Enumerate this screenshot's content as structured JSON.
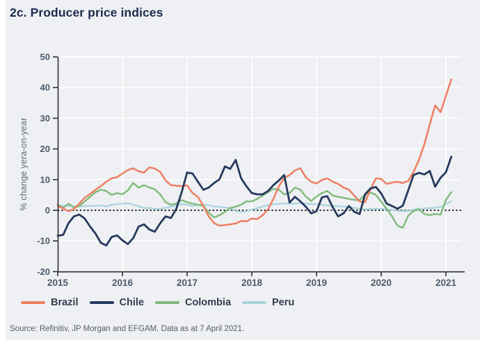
{
  "title": "2c. Producer price indices",
  "source": "Source: Refinitiv, JP Morgan and EFGAM. Data as at 7 April 2021.",
  "colors": {
    "panel_bg": "#eef0f3",
    "grid": "#ffffff",
    "axis": "#2f2f2f",
    "tick_label": "#4d5b6b",
    "axis_title": "#5d6b7a",
    "zero_line": "#1f1f1f",
    "title_text": "#1e2b4f",
    "legend_text": "#333d4d",
    "source_text": "#565d64"
  },
  "chart_data": {
    "type": "line",
    "title": "2c. Producer price indices",
    "ylabel": "% change yera-on-year",
    "ylim": [
      -20,
      50
    ],
    "yticks": [
      50,
      40,
      30,
      20,
      10,
      0,
      -10,
      -20
    ],
    "xtick_labels": [
      "2015",
      "2016",
      "2017",
      "2018",
      "2019",
      "2020",
      "2021"
    ],
    "x_unit": "monthly",
    "x_range": "Jan 2015 - Feb 2021",
    "grid": "on",
    "zero_line": "dotted",
    "legend_position": "bottom-left",
    "series": [
      {
        "name": "Brazil",
        "color": "#ee7e62",
        "values": [
          1.4,
          0.6,
          -0.3,
          0.4,
          2.2,
          4.1,
          5.3,
          6.7,
          7.9,
          9.3,
          10.4,
          10.8,
          12.0,
          13.1,
          13.7,
          12.7,
          12.3,
          14.0,
          13.6,
          12.5,
          9.7,
          8.2,
          8.0,
          7.9,
          8.1,
          5.6,
          4.4,
          1.4,
          -2.0,
          -4.2,
          -5.0,
          -4.8,
          -4.6,
          -4.3,
          -3.5,
          -3.6,
          -2.7,
          -2.9,
          -1.6,
          0.3,
          3.7,
          7.8,
          10.5,
          11.5,
          13.0,
          13.7,
          10.8,
          9.3,
          8.7,
          9.9,
          10.4,
          9.3,
          8.6,
          7.4,
          6.7,
          4.8,
          2.9,
          2.6,
          6.8,
          10.4,
          10.2,
          8.6,
          9.0,
          9.3,
          8.9,
          9.6,
          12.5,
          16.5,
          21.5,
          28.0,
          34.2,
          32.0,
          37.3,
          42.7
        ]
      },
      {
        "name": "Chile",
        "color": "#25395c",
        "values": [
          -8.3,
          -8.0,
          -4.2,
          -2.0,
          -1.4,
          -2.7,
          -5.3,
          -7.6,
          -10.6,
          -11.5,
          -8.7,
          -8.2,
          -9.8,
          -11.0,
          -9.1,
          -5.3,
          -4.6,
          -6.3,
          -7.0,
          -4.2,
          -2.0,
          -2.5,
          0.5,
          6.0,
          12.3,
          12.0,
          9.3,
          6.7,
          7.4,
          8.9,
          10.1,
          14.3,
          13.5,
          16.4,
          10.5,
          7.8,
          5.6,
          5.2,
          5.2,
          6.3,
          8.2,
          9.7,
          11.5,
          2.5,
          4.4,
          2.9,
          1.2,
          -1.0,
          -0.3,
          4.2,
          4.6,
          1.0,
          -2.0,
          -1.0,
          1.4,
          -0.5,
          -1.2,
          5.2,
          7.1,
          7.6,
          5.5,
          2.2,
          1.4,
          0.5,
          1.5,
          6.5,
          11.5,
          12.2,
          11.7,
          12.8,
          7.7,
          10.6,
          12.4,
          17.5
        ]
      },
      {
        "name": "Colombia",
        "color": "#7fba7a",
        "values": [
          1.8,
          0.8,
          2.2,
          0.9,
          1.4,
          2.9,
          4.4,
          5.9,
          6.7,
          6.3,
          5.0,
          5.6,
          5.2,
          6.5,
          8.9,
          7.4,
          8.2,
          7.4,
          6.8,
          5.2,
          2.6,
          1.8,
          2.2,
          3.3,
          2.6,
          2.2,
          1.8,
          1.4,
          -0.8,
          -2.3,
          -1.6,
          -0.5,
          0.7,
          1.2,
          1.8,
          2.9,
          2.9,
          3.7,
          4.8,
          5.9,
          7.0,
          6.7,
          5.2,
          5.6,
          7.4,
          6.7,
          4.5,
          3.0,
          4.5,
          5.6,
          6.3,
          4.8,
          4.4,
          4.1,
          3.7,
          3.4,
          3.3,
          5.2,
          5.8,
          5.0,
          2.8,
          0.5,
          -2.0,
          -5.0,
          -5.7,
          -1.8,
          -0.2,
          0.3,
          -1.2,
          -1.6,
          -1.2,
          -1.4,
          3.4,
          5.9
        ]
      },
      {
        "name": "Peru",
        "color": "#a9d2dd",
        "values": [
          1.6,
          1.5,
          1.4,
          1.3,
          1.3,
          1.4,
          1.4,
          1.5,
          1.6,
          1.2,
          1.8,
          2.0,
          2.2,
          2.3,
          1.8,
          1.3,
          0.7,
          0.8,
          0.4,
          0.5,
          0.8,
          1.2,
          1.7,
          2.0,
          1.8,
          1.4,
          1.7,
          1.8,
          1.7,
          1.2,
          1.1,
          0.9,
          0.7,
          -0.3,
          -0.5,
          -0.3,
          0.2,
          0.7,
          1.2,
          1.7,
          2.0,
          2.1,
          2.2,
          2.2,
          2.2,
          2.4,
          2.2,
          2.0,
          2.0,
          1.8,
          1.6,
          1.4,
          1.3,
          1.2,
          1.1,
          0.8,
          0.5,
          0.3,
          0.4,
          0.4,
          0.5,
          0.3,
          0.1,
          -0.2,
          -0.3,
          -0.2,
          0.2,
          0.5,
          0.6,
          0.7,
          0.8,
          1.1,
          2.0,
          2.9
        ]
      }
    ]
  }
}
